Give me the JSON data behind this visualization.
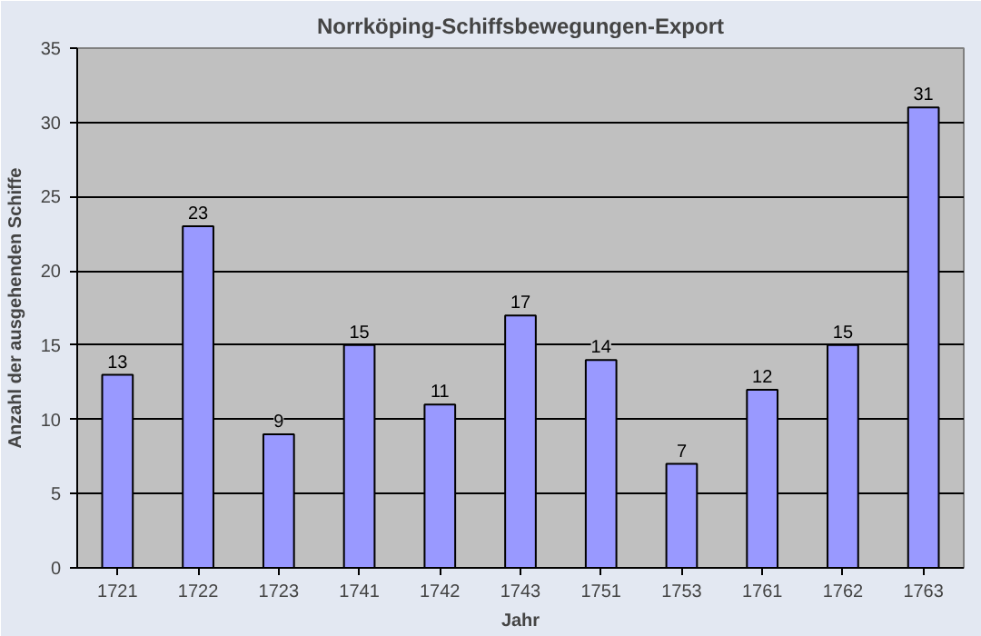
{
  "chart_data": {
    "type": "bar",
    "title": "Norrköping-Schiffsbewegungen-Export",
    "xlabel": "Jahr",
    "ylabel": "Anzahl der ausgehenden Schiffe",
    "categories": [
      "1721",
      "1722",
      "1723",
      "1741",
      "1742",
      "1743",
      "1751",
      "1753",
      "1761",
      "1762",
      "1763"
    ],
    "values": [
      13,
      23,
      9,
      15,
      11,
      17,
      14,
      7,
      12,
      15,
      31
    ],
    "color": "#9999ff",
    "ylim": [
      0,
      35
    ],
    "yticks": [
      0,
      5,
      10,
      15,
      20,
      25,
      30,
      35
    ],
    "grid": "y",
    "data_labels": true
  }
}
